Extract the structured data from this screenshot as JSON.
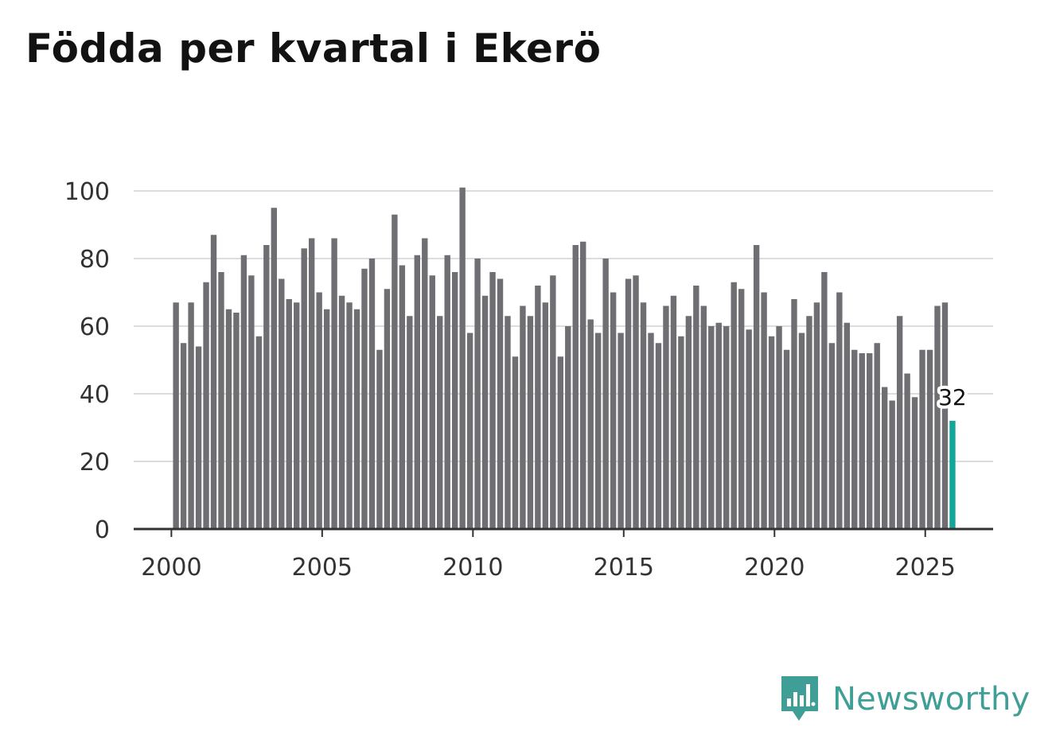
{
  "colors": {
    "bar": "#6f6f73",
    "highlight": "#12a59a",
    "grid": "#dddddd",
    "axis": "#333333",
    "brand": "#3f9e95"
  },
  "brand": {
    "name": "Newsworthy",
    "icon": "bar-chart-speech-bubble-icon"
  },
  "chart_data": {
    "type": "bar",
    "title": "Födda per kvartal i Ekerö",
    "xlabel": "",
    "ylabel": "",
    "ylim": [
      0,
      100
    ],
    "yticks": [
      0,
      20,
      40,
      60,
      80,
      100
    ],
    "xticks": [
      2000,
      2005,
      2010,
      2015,
      2020,
      2025
    ],
    "xlim": [
      1998.75,
      2027.25
    ],
    "grid": true,
    "series": [
      {
        "name": "Födda per kvartal",
        "start": 2000,
        "step": 0.25,
        "values": [
          67,
          55,
          67,
          54,
          73,
          87,
          76,
          65,
          64,
          81,
          75,
          57,
          84,
          95,
          74,
          68,
          67,
          83,
          86,
          70,
          65,
          86,
          69,
          67,
          65,
          77,
          80,
          53,
          71,
          93,
          78,
          63,
          81,
          86,
          75,
          63,
          81,
          76,
          101,
          58,
          80,
          69,
          76,
          74,
          63,
          51,
          66,
          63,
          72,
          67,
          75,
          51,
          60,
          84,
          85,
          62,
          58,
          80,
          70,
          58,
          74,
          75,
          67,
          58,
          55,
          66,
          69,
          57,
          63,
          72,
          66,
          60,
          61,
          60,
          73,
          71,
          59,
          84,
          70,
          57,
          60,
          53,
          68,
          58,
          63,
          67,
          76,
          55,
          70,
          61,
          53,
          52,
          52,
          55,
          42,
          38,
          63,
          46,
          39,
          53,
          53,
          66,
          67,
          32
        ]
      }
    ],
    "highlight": {
      "index": 103,
      "value": 32,
      "label": "32"
    }
  }
}
